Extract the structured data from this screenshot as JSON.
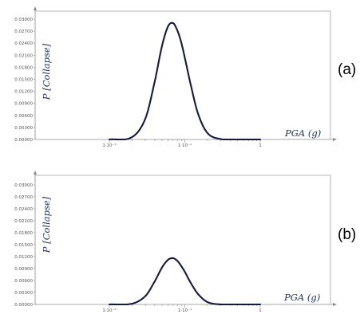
{
  "chart_data": [
    {
      "type": "line",
      "panel_label": "(a)",
      "title": "",
      "xlabel": "PGA (g)",
      "ylabel": "P [Collapse]",
      "x_scale": "log",
      "xlim": [
        0.0001,
        1
      ],
      "ylim": [
        0,
        0.03
      ],
      "y_ticks": [
        "0.00000",
        "0.00300",
        "0.00600",
        "0.00900",
        "0.01200",
        "0.01500",
        "0.01800",
        "0.02100",
        "0.02400",
        "0.02700",
        "0.03000"
      ],
      "x_ticks": [
        {
          "value": 0.01,
          "label": "1·10⁻²"
        },
        {
          "value": 0.1,
          "label": "1·10⁻¹"
        },
        {
          "value": 1,
          "label": "1"
        }
      ],
      "grid": false,
      "legend": "none",
      "series": [
        {
          "color": "#141a3c",
          "x": [
            0.01,
            0.02,
            0.03,
            0.04,
            0.05,
            0.06,
            0.07,
            0.08,
            0.09,
            0.1,
            0.12,
            0.15,
            0.2,
            0.3,
            0.5,
            1
          ],
          "y": [
            0.0,
            0.0006,
            0.0052,
            0.0145,
            0.0234,
            0.0282,
            0.029,
            0.0271,
            0.0241,
            0.0204,
            0.0136,
            0.0064,
            0.0016,
            0.0001,
            0.0,
            0.0
          ]
        }
      ]
    },
    {
      "type": "line",
      "panel_label": "(b)",
      "title": "",
      "xlabel": "PGA (g)",
      "ylabel": "P [Collapse]",
      "x_scale": "log",
      "xlim": [
        0.0001,
        1
      ],
      "ylim": [
        0,
        0.03
      ],
      "y_ticks": [
        "0.00000",
        "0.00300",
        "0.00600",
        "0.00900",
        "0.01200",
        "0.01500",
        "0.01800",
        "0.02100",
        "0.02400",
        "0.02700",
        "0.03000"
      ],
      "x_ticks": [
        {
          "value": 0.01,
          "label": "1·10⁻²"
        },
        {
          "value": 0.1,
          "label": "1·10⁻¹"
        },
        {
          "value": 1,
          "label": "1"
        }
      ],
      "grid": false,
      "legend": "none",
      "series": [
        {
          "color": "#141a3c",
          "x": [
            0.01,
            0.02,
            0.03,
            0.04,
            0.05,
            0.06,
            0.07,
            0.08,
            0.09,
            0.1,
            0.12,
            0.15,
            0.2,
            0.3,
            0.5,
            1
          ],
          "y": [
            0.0,
            0.0002,
            0.0021,
            0.0058,
            0.0093,
            0.0112,
            0.0116,
            0.0109,
            0.0096,
            0.0082,
            0.0054,
            0.0026,
            0.0006,
            0.0,
            0.0,
            0.0
          ]
        }
      ]
    }
  ]
}
